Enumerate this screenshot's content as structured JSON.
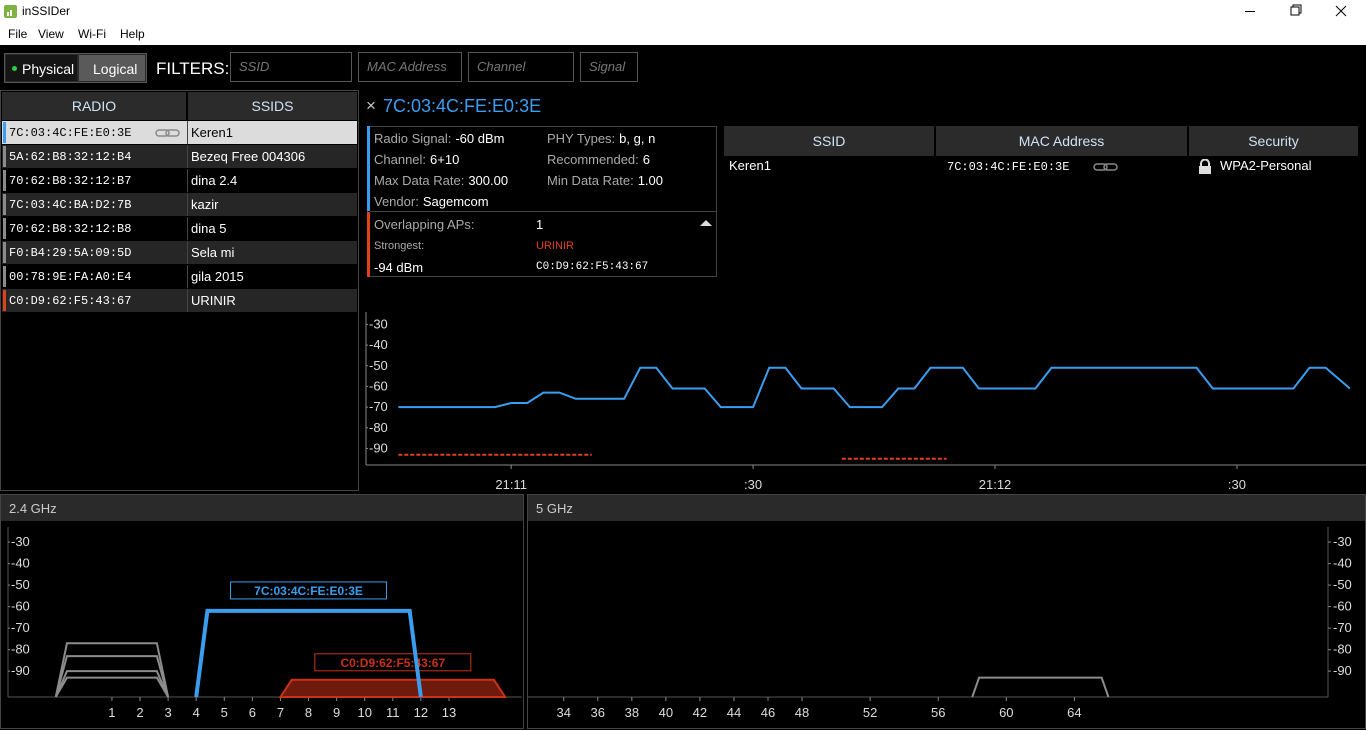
{
  "window": {
    "title": "inSSIDer"
  },
  "menu": [
    "File",
    "View",
    "Wi-Fi",
    "Help"
  ],
  "toolbar": {
    "modes": [
      "Physical",
      "Logical"
    ],
    "filters_label": "FILTERS:",
    "filters": [
      "SSID",
      "MAC Address",
      "Channel",
      "Signal"
    ]
  },
  "radio_table": {
    "headers": [
      "RADIO",
      "SSIDS"
    ],
    "rows": [
      {
        "radio": "7C:03:4C:FE:E0:3E",
        "ssid": "Keren1",
        "color": "#3a9ef0",
        "selected": true
      },
      {
        "radio": "5A:62:B8:32:12:B4",
        "ssid": "Bezeq Free 004306",
        "color": "#8c8c8c"
      },
      {
        "radio": "70:62:B8:32:12:B7",
        "ssid": "dina 2.4",
        "color": "#8c8c8c"
      },
      {
        "radio": "7C:03:4C:BA:D2:7B",
        "ssid": "kazir",
        "color": "#8c8c8c"
      },
      {
        "radio": "70:62:B8:32:12:B8",
        "ssid": "dina 5",
        "color": "#8c8c8c"
      },
      {
        "radio": "F0:B4:29:5A:09:5D",
        "ssid": "Sela mi",
        "color": "#8c8c8c"
      },
      {
        "radio": "00:78:9E:FA:A0:E4",
        "ssid": "gila 2015",
        "color": "#8c8c8c"
      },
      {
        "radio": "C0:D9:62:F5:43:67",
        "ssid": "URINIR",
        "color": "#e0401a"
      }
    ]
  },
  "details": {
    "title": "7C:03:4C:FE:E0:3E",
    "fields": [
      {
        "label": "Radio Signal:",
        "value": "-60 dBm"
      },
      {
        "label": "PHY Types:",
        "value": "b, g, n"
      },
      {
        "label": "Channel:",
        "value": "6+10"
      },
      {
        "label": "Recommended:",
        "value": "6"
      },
      {
        "label": "Max Data Rate:",
        "value": "300.00"
      },
      {
        "label": "Min Data Rate:",
        "value": "1.00"
      },
      {
        "label": "Vendor:",
        "value": "Sagemcom"
      }
    ],
    "overlap": {
      "label": "Overlapping APs:",
      "count": "1",
      "strongest_label": "Strongest:",
      "strongest_ssid": "URINIR",
      "strongest_signal": "-94 dBm",
      "strongest_mac": "C0:D9:62:F5:43:67"
    }
  },
  "ssid_table": {
    "headers": [
      "SSID",
      "MAC Address",
      "Security"
    ],
    "rows": [
      [
        "Keren1",
        "7C:03:4C:FE:E0:3E",
        "WPA2-Personal"
      ]
    ]
  },
  "chart_data": [
    {
      "type": "line",
      "ylim": [
        -98,
        -24
      ],
      "yticks": [
        -30,
        -40,
        -50,
        -60,
        -70,
        -80,
        -90
      ],
      "xlim": [
        76242,
        76366
      ],
      "xticks": [
        {
          "value": 76260,
          "label": "21:11"
        },
        {
          "value": 76290,
          "label": ":30"
        },
        {
          "value": 76320,
          "label": "21:12"
        },
        {
          "value": 76350,
          "label": ":30"
        }
      ],
      "series": [
        {
          "color": "#3a9ef0",
          "x": [
            76246,
            76258,
            76260,
            76262,
            76264,
            76266,
            76268,
            76274,
            76276,
            76278,
            76280,
            76284,
            76286,
            76290,
            76292,
            76294,
            76296,
            76300,
            76302,
            76306,
            76308,
            76310,
            76312,
            76316,
            76318,
            76325,
            76327,
            76345,
            76347,
            76357,
            76359,
            76361,
            76364
          ],
          "values": [
            -70,
            -70,
            -68,
            -68,
            -63,
            -63,
            -66,
            -66,
            -51,
            -51,
            -61,
            -61,
            -70,
            -70,
            -51,
            -51,
            -61,
            -61,
            -70,
            -70,
            -61,
            -61,
            -51,
            -51,
            -61,
            -61,
            -51,
            -51,
            -61,
            -61,
            -51,
            -51,
            -61
          ]
        },
        {
          "color": "#e0401a",
          "dashed": true,
          "x": [
            76246,
            76270
          ],
          "values": [
            -93,
            -93
          ]
        },
        {
          "color": "#e0401a",
          "dashed": true,
          "x": [
            76301,
            76314
          ],
          "values": [
            -95,
            -95
          ]
        }
      ]
    },
    {
      "type": "spectrum",
      "title": "2.4 GHz",
      "ylim": [
        -102,
        -23
      ],
      "yticks": [
        -30,
        -40,
        -50,
        -60,
        -70,
        -80,
        -90
      ],
      "xlim": [
        -2.7,
        15.6
      ],
      "xticks": [
        1,
        2,
        3,
        4,
        5,
        6,
        7,
        8,
        9,
        10,
        11,
        12,
        13
      ],
      "y_axis_side": "left",
      "networks": [
        {
          "channel_lo": -1,
          "channel_hi": 3,
          "signal": -77,
          "color": "#8c8c8c"
        },
        {
          "channel_lo": -1,
          "channel_hi": 3,
          "signal": -83,
          "color": "#8c8c8c"
        },
        {
          "channel_lo": -1,
          "channel_hi": 3,
          "signal": -90,
          "color": "#8c8c8c"
        },
        {
          "channel_lo": -1,
          "channel_hi": 3,
          "signal": -93,
          "color": "#8c8c8c"
        },
        {
          "channel_lo": 7,
          "channel_hi": 15,
          "signal": -94,
          "color": "#c8321a",
          "filled": true,
          "label": "C0:D9:62:F5:43:67"
        },
        {
          "channel_lo": 4,
          "channel_hi": 12,
          "signal": -62,
          "color": "#3a9ef0",
          "label": "7C:03:4C:FE:E0:3E"
        }
      ]
    },
    {
      "type": "spectrum",
      "title": "5 GHz",
      "ylim": [
        -102,
        -23
      ],
      "yticks": [
        -30,
        -40,
        -50,
        -60,
        -70,
        -80,
        -90
      ],
      "xlim": [
        31.9,
        78.9
      ],
      "xticks": [
        34,
        36,
        38,
        40,
        42,
        44,
        46,
        48,
        52,
        56,
        60,
        64
      ],
      "y_axis_side": "right",
      "networks": [
        {
          "channel_lo": 58,
          "channel_hi": 66,
          "signal": -93,
          "color": "#8c8c8c"
        }
      ]
    }
  ]
}
